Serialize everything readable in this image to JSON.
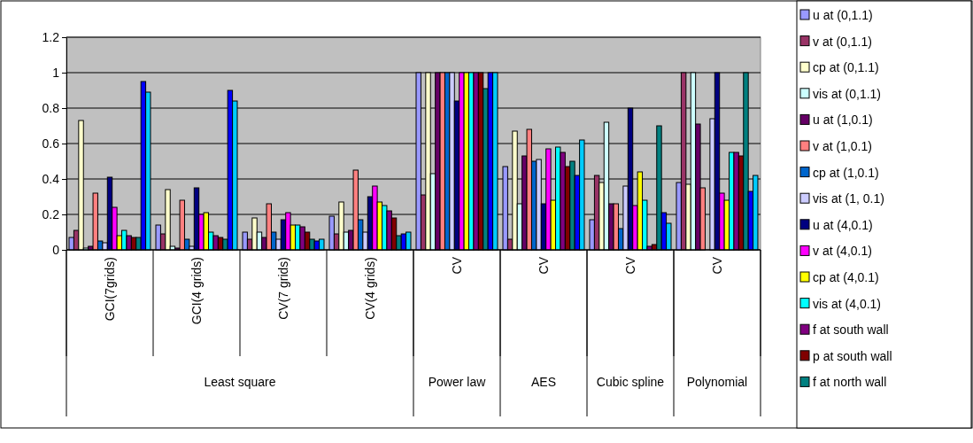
{
  "chart_data": {
    "type": "bar",
    "categories": [
      "GCI(7grids)",
      "GCI(4 grids)",
      "CV(7 grids)",
      "CV(4 grids)",
      "CV",
      "CV",
      "CV",
      "CV"
    ],
    "annotations": [
      "Least square",
      "Power law",
      "AES",
      "Cubic spline",
      "Polynomial"
    ],
    "ylim": [
      0,
      1.2
    ],
    "yticks": [
      0,
      0.2,
      0.4,
      0.6,
      0.8,
      1,
      1.2
    ],
    "grid": "y",
    "legend": "right",
    "series": [
      {
        "name": "u at (0,1.1)",
        "color": "#9999ff",
        "values": [
          0.07,
          0.14,
          0.1,
          0.19,
          1,
          0.47,
          0.17,
          0.38
        ]
      },
      {
        "name": "v at (0,1.1)",
        "color": "#993366",
        "values": [
          0.11,
          0.09,
          0.06,
          0.09,
          0.31,
          0.06,
          0.42,
          1
        ]
      },
      {
        "name": "cp at (0,1.1)",
        "color": "#ffffcc",
        "values": [
          0.73,
          0.34,
          0.18,
          0.27,
          1,
          0.67,
          0.38,
          0.37
        ]
      },
      {
        "name": "vis at (0,1.1)",
        "color": "#ccffff",
        "values": [
          0.01,
          0.02,
          0.1,
          0.1,
          0.43,
          0.26,
          0.72,
          1
        ]
      },
      {
        "name": "u at (1,0.1)",
        "color": "#660066",
        "values": [
          0.02,
          0.01,
          0.07,
          0.11,
          1,
          0.53,
          0.26,
          0.71
        ]
      },
      {
        "name": "v at (1,0.1)",
        "color": "#ff8080",
        "values": [
          0.32,
          0.28,
          0.26,
          0.45,
          1,
          0.68,
          0.26,
          0.35
        ]
      },
      {
        "name": "cp at (1,0.1)",
        "color": "#0066cc",
        "values": [
          0.05,
          0.06,
          0.1,
          0.17,
          1,
          0.5,
          0.12,
          0
        ]
      },
      {
        "name": "vis at (1, 0.1)",
        "color": "#ccccff",
        "values": [
          0.04,
          0.02,
          0.06,
          0.1,
          1,
          0.51,
          0.36,
          0.74
        ]
      },
      {
        "name": "u at (4,0.1)",
        "color": "#000080",
        "values": [
          0.41,
          0.35,
          0.17,
          0.3,
          0.84,
          0.26,
          0.8,
          1
        ]
      },
      {
        "name": "v at (4,0.1)",
        "color": "#ff00ff",
        "values": [
          0.24,
          0.2,
          0.21,
          0.36,
          1,
          0.57,
          0.25,
          0.32
        ]
      },
      {
        "name": "cp at (4,0.1)",
        "color": "#ffff00",
        "values": [
          0.08,
          0.21,
          0.14,
          0.27,
          1,
          0.28,
          0.44,
          0.28
        ]
      },
      {
        "name": "vis at (4,0.1)",
        "color": "#00ffff",
        "values": [
          0.11,
          0.1,
          0.14,
          0.25,
          1,
          0.58,
          0.28,
          0.55
        ]
      },
      {
        "name": "f at south wall",
        "color": "#800080",
        "values": [
          0.08,
          0.08,
          0.13,
          0.22,
          1,
          0.55,
          0.02,
          0.55
        ]
      },
      {
        "name": "p at south wall",
        "color": "#800000",
        "values": [
          0.07,
          0.07,
          0.1,
          0.18,
          1,
          0.47,
          0.03,
          0.53
        ]
      },
      {
        "name": "f at north wall",
        "color": "#008080",
        "values": [
          0.07,
          0.06,
          0.06,
          0.08,
          0.91,
          0.5,
          0.7,
          1
        ]
      },
      {
        "color": "#0000ff",
        "values": [
          0.95,
          0.9,
          0.05,
          0.09,
          1,
          0.42,
          0.21,
          0.33
        ]
      },
      {
        "color": "#00ccff",
        "values": [
          0.89,
          0.84,
          0.06,
          0.1,
          1,
          0.62,
          0.15,
          0.42
        ]
      }
    ]
  }
}
